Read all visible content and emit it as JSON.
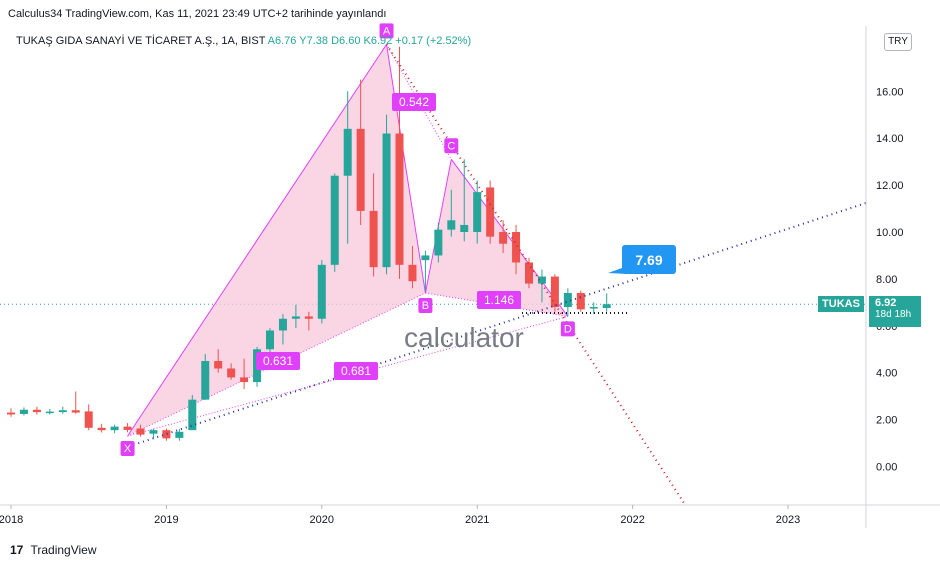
{
  "header": {
    "published_line": "Calculus34 TradingView.com, Kas 11, 2021 23:49 UTC+2 tarihinde yayınlandı",
    "symbol_title": "TUKAŞ GIDA SANAYİ VE TİCARET A.Ş., 1A, BIST",
    "ohlc": "A6.76  Y7.38  D6.60  K6.92  +0.17 (+2.52%)",
    "currency": "TRY"
  },
  "price_axis": {
    "ticker": "TUKAS",
    "last_price": "6.92",
    "countdown": "18d 18h"
  },
  "footer": {
    "brand": "TradingView"
  },
  "watermark": {
    "text": "calculator"
  },
  "colors": {
    "up": "#26a69a",
    "down": "#ef5350",
    "pattern_fill": "#f8c8dc",
    "pattern_line": "#e040fb",
    "label_bg": "#e040fb",
    "target_bg": "#2196f3",
    "trend_blue": "#2a2e99",
    "trend_red": "#c62828"
  },
  "chart_data": {
    "type": "candlestick",
    "timeframe": "1M",
    "x_tick_labels": [
      "2018",
      "2019",
      "2020",
      "2021",
      "2022",
      "2023"
    ],
    "y_tick_labels": [
      "0.00",
      "2.00",
      "4.00",
      "6.00",
      "8.00",
      "10.00",
      "12.00",
      "14.00",
      "16.00"
    ],
    "y_range": [
      -1.5,
      18.5
    ],
    "candles": [
      {
        "t": "2018-01",
        "o": 2.3,
        "h": 2.48,
        "l": 2.12,
        "c": 2.22
      },
      {
        "t": "2018-02",
        "o": 2.24,
        "h": 2.52,
        "l": 2.18,
        "c": 2.42
      },
      {
        "t": "2018-03",
        "o": 2.42,
        "h": 2.55,
        "l": 2.22,
        "c": 2.32
      },
      {
        "t": "2018-04",
        "o": 2.32,
        "h": 2.45,
        "l": 2.22,
        "c": 2.34
      },
      {
        "t": "2018-05",
        "o": 2.32,
        "h": 2.55,
        "l": 2.25,
        "c": 2.4
      },
      {
        "t": "2018-06",
        "o": 2.4,
        "h": 3.2,
        "l": 2.25,
        "c": 2.3
      },
      {
        "t": "2018-07",
        "o": 2.35,
        "h": 2.65,
        "l": 1.55,
        "c": 1.65
      },
      {
        "t": "2018-08",
        "o": 1.65,
        "h": 1.82,
        "l": 1.45,
        "c": 1.55
      },
      {
        "t": "2018-09",
        "o": 1.55,
        "h": 1.78,
        "l": 1.42,
        "c": 1.7
      },
      {
        "t": "2018-10",
        "o": 1.7,
        "h": 1.85,
        "l": 1.46,
        "c": 1.56
      },
      {
        "t": "2018-11",
        "o": 1.62,
        "h": 1.78,
        "l": 1.28,
        "c": 1.36
      },
      {
        "t": "2018-12",
        "o": 1.4,
        "h": 1.62,
        "l": 1.2,
        "c": 1.55
      },
      {
        "t": "2019-01",
        "o": 1.55,
        "h": 1.62,
        "l": 1.1,
        "c": 1.2
      },
      {
        "t": "2019-02",
        "o": 1.22,
        "h": 1.6,
        "l": 1.1,
        "c": 1.48
      },
      {
        "t": "2019-03",
        "o": 1.55,
        "h": 3.05,
        "l": 1.55,
        "c": 2.85
      },
      {
        "t": "2019-04",
        "o": 2.85,
        "h": 4.8,
        "l": 2.85,
        "c": 4.5
      },
      {
        "t": "2019-05",
        "o": 4.5,
        "h": 5.0,
        "l": 4.0,
        "c": 4.18
      },
      {
        "t": "2019-06",
        "o": 4.18,
        "h": 4.4,
        "l": 3.7,
        "c": 3.8
      },
      {
        "t": "2019-07",
        "o": 3.8,
        "h": 4.6,
        "l": 3.3,
        "c": 3.6
      },
      {
        "t": "2019-08",
        "o": 3.6,
        "h": 5.1,
        "l": 3.4,
        "c": 5.0
      },
      {
        "t": "2019-09",
        "o": 5.0,
        "h": 5.9,
        "l": 4.6,
        "c": 5.8
      },
      {
        "t": "2019-10",
        "o": 5.8,
        "h": 6.5,
        "l": 5.2,
        "c": 6.3
      },
      {
        "t": "2019-11",
        "o": 6.3,
        "h": 6.9,
        "l": 5.9,
        "c": 6.4
      },
      {
        "t": "2019-12",
        "o": 6.4,
        "h": 6.6,
        "l": 5.8,
        "c": 6.3
      },
      {
        "t": "2020-01",
        "o": 6.3,
        "h": 8.8,
        "l": 6.1,
        "c": 8.6
      },
      {
        "t": "2020-02",
        "o": 8.6,
        "h": 12.5,
        "l": 8.3,
        "c": 12.4
      },
      {
        "t": "2020-03",
        "o": 12.4,
        "h": 16.0,
        "l": 9.5,
        "c": 14.4
      },
      {
        "t": "2020-04",
        "o": 14.4,
        "h": 16.5,
        "l": 10.3,
        "c": 10.9
      },
      {
        "t": "2020-05",
        "o": 10.9,
        "h": 12.5,
        "l": 8.1,
        "c": 8.5
      },
      {
        "t": "2020-06",
        "o": 8.5,
        "h": 15.0,
        "l": 8.2,
        "c": 14.2
      },
      {
        "t": "2020-07",
        "o": 14.2,
        "h": 17.9,
        "l": 8.0,
        "c": 8.6
      },
      {
        "t": "2020-08",
        "o": 8.6,
        "h": 9.4,
        "l": 7.6,
        "c": 7.9
      },
      {
        "t": "2020-09",
        "o": 8.8,
        "h": 9.2,
        "l": 7.5,
        "c": 9.0
      },
      {
        "t": "2020-10",
        "o": 9.0,
        "h": 10.4,
        "l": 8.7,
        "c": 10.1
      },
      {
        "t": "2020-11",
        "o": 10.1,
        "h": 11.8,
        "l": 9.8,
        "c": 10.5
      },
      {
        "t": "2020-12",
        "o": 10.0,
        "h": 13.1,
        "l": 9.6,
        "c": 10.3
      },
      {
        "t": "2021-01",
        "o": 10.0,
        "h": 12.2,
        "l": 9.5,
        "c": 11.7
      },
      {
        "t": "2021-02",
        "o": 11.9,
        "h": 12.2,
        "l": 9.5,
        "c": 9.8
      },
      {
        "t": "2021-03",
        "o": 10.0,
        "h": 10.5,
        "l": 9.1,
        "c": 9.5
      },
      {
        "t": "2021-04",
        "o": 10.0,
        "h": 10.3,
        "l": 8.2,
        "c": 8.7
      },
      {
        "t": "2021-05",
        "o": 8.7,
        "h": 8.9,
        "l": 7.6,
        "c": 7.8
      },
      {
        "t": "2021-06",
        "o": 7.8,
        "h": 8.4,
        "l": 7.0,
        "c": 8.1
      },
      {
        "t": "2021-07",
        "o": 8.1,
        "h": 8.2,
        "l": 6.6,
        "c": 6.8
      },
      {
        "t": "2021-08",
        "o": 6.8,
        "h": 7.6,
        "l": 6.4,
        "c": 7.4
      },
      {
        "t": "2021-09",
        "o": 7.4,
        "h": 7.5,
        "l": 6.6,
        "c": 6.7
      },
      {
        "t": "2021-10",
        "o": 6.75,
        "h": 7.0,
        "l": 6.5,
        "c": 6.8
      },
      {
        "t": "2021-11",
        "o": 6.76,
        "h": 7.38,
        "l": 6.6,
        "c": 6.92
      }
    ],
    "harmonic_pattern": {
      "points": [
        {
          "label": "X",
          "t": "2018-10",
          "price": 1.3
        },
        {
          "label": "A",
          "t": "2020-06",
          "price": 18.0
        },
        {
          "label": "B",
          "t": "2020-09",
          "price": 7.4
        },
        {
          "label": "C",
          "t": "2020-11",
          "price": 13.1
        },
        {
          "label": "D",
          "t": "2021-08",
          "price": 6.4
        }
      ],
      "ratios": [
        {
          "label": "0.631"
        },
        {
          "label": "0.542"
        },
        {
          "label": "1.146"
        },
        {
          "label": "0.681"
        }
      ]
    },
    "target_label": "7.69",
    "last_price_line": 6.92
  }
}
